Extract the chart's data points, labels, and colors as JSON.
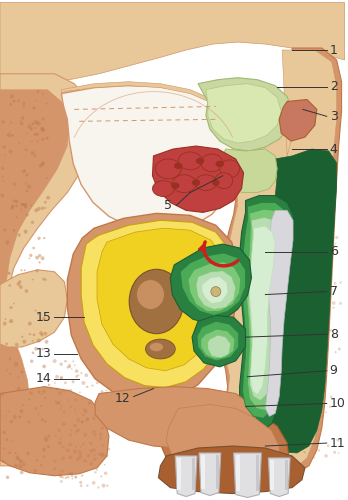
{
  "bg_color": "#ffffff",
  "bone_light": "#E8C898",
  "bone_mid": "#D4956A",
  "bone_dark": "#C07848",
  "bone_darker": "#A86030",
  "green_darkest": "#1A6030",
  "green_dark": "#2A8040",
  "green_mid": "#4AAA55",
  "green_light": "#7DC878",
  "green_pale": "#B8DDB0",
  "green_very_pale": "#D5EDD0",
  "yellow_bright": "#F0D020",
  "yellow_dark": "#C8A010",
  "yellow_light": "#F8E060",
  "brown_dark": "#7A5030",
  "brown_mid": "#A07040",
  "brown_light": "#C89060",
  "red_dark": "#993020",
  "red_mid": "#C04040",
  "red_bright": "#CC2020",
  "red_light": "#D06050",
  "salmon": "#C87860",
  "gray_white": "#D8D8DC",
  "gray_light": "#E8E8EC",
  "white_tooth": "#E0E0E2",
  "line_color": "#333333",
  "label_fontsize": 9
}
